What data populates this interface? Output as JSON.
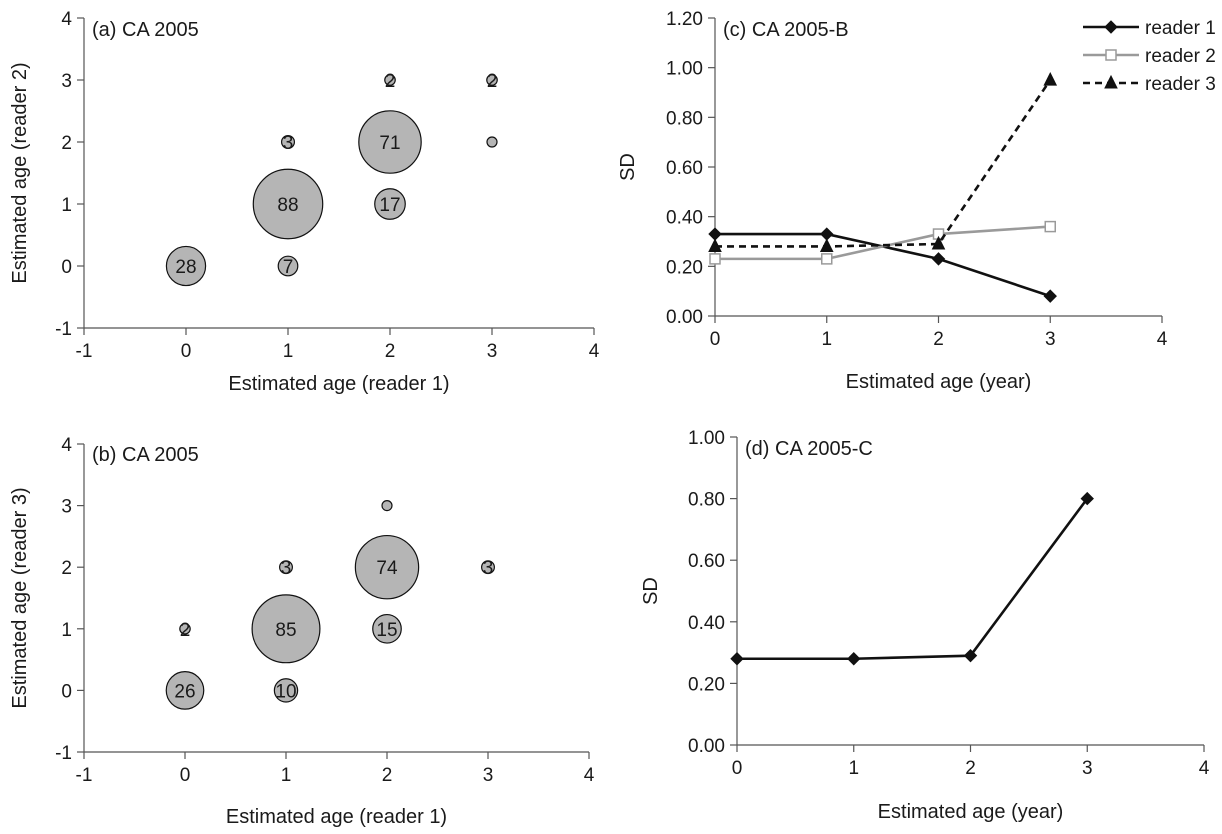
{
  "chart_data": [
    {
      "id": "a",
      "type": "scatter",
      "title": "(a) CA 2005",
      "xlabel": "Estimated age (reader 1)",
      "ylabel": "Estimated age (reader 2)",
      "xlim": [
        -1,
        4
      ],
      "ylim": [
        -1,
        4
      ],
      "xticks": [
        -1,
        0,
        1,
        2,
        3,
        4
      ],
      "yticks": [
        -1,
        0,
        1,
        2,
        3,
        4
      ],
      "points": [
        {
          "x": 0,
          "y": 0,
          "n": 28
        },
        {
          "x": 1,
          "y": 0,
          "n": 7
        },
        {
          "x": 1,
          "y": 1,
          "n": 88
        },
        {
          "x": 1,
          "y": 2,
          "n": 3
        },
        {
          "x": 2,
          "y": 1,
          "n": 17
        },
        {
          "x": 2,
          "y": 2,
          "n": 71
        },
        {
          "x": 2,
          "y": 3,
          "n": 2
        },
        {
          "x": 3,
          "y": 2,
          "n": 1
        },
        {
          "x": 3,
          "y": 3,
          "n": 2
        }
      ]
    },
    {
      "id": "b",
      "type": "scatter",
      "title": "(b) CA 2005",
      "xlabel": "Estimated age (reader 1)",
      "ylabel": "Estimated age (reader 3)",
      "xlim": [
        -1,
        4
      ],
      "ylim": [
        -1,
        4
      ],
      "xticks": [
        -1,
        0,
        1,
        2,
        3,
        4
      ],
      "yticks": [
        -1,
        0,
        1,
        2,
        3,
        4
      ],
      "points": [
        {
          "x": 0,
          "y": 0,
          "n": 26
        },
        {
          "x": 0,
          "y": 1,
          "n": 2
        },
        {
          "x": 1,
          "y": 0,
          "n": 10
        },
        {
          "x": 1,
          "y": 1,
          "n": 85
        },
        {
          "x": 1,
          "y": 2,
          "n": 3
        },
        {
          "x": 2,
          "y": 1,
          "n": 15
        },
        {
          "x": 2,
          "y": 2,
          "n": 74
        },
        {
          "x": 2,
          "y": 3,
          "n": 1
        },
        {
          "x": 3,
          "y": 2,
          "n": 3
        }
      ]
    },
    {
      "id": "c",
      "type": "line",
      "title": "(c) CA 2005-B",
      "xlabel": "Estimated age (year)",
      "ylabel": "SD",
      "xlim": [
        0,
        4
      ],
      "ylim": [
        0,
        1.2
      ],
      "xticks": [
        "0",
        "1",
        "2",
        "3",
        "4"
      ],
      "yticks": [
        "0.00",
        "0.20",
        "0.40",
        "0.60",
        "0.80",
        "1.00",
        "1.20"
      ],
      "x": [
        0,
        1,
        2,
        3
      ],
      "legend": "top-right",
      "series": [
        {
          "name": "reader 1",
          "values": [
            0.33,
            0.33,
            0.23,
            0.08
          ],
          "color": "#111111",
          "dash": "",
          "marker": "diamond"
        },
        {
          "name": "reader 2",
          "values": [
            0.23,
            0.23,
            0.33,
            0.36
          ],
          "color": "#9a9a9a",
          "dash": "",
          "marker": "square-open"
        },
        {
          "name": "reader 3",
          "values": [
            0.28,
            0.28,
            0.29,
            0.95
          ],
          "color": "#111111",
          "dash": "7,5",
          "marker": "triangle"
        }
      ]
    },
    {
      "id": "d",
      "type": "line",
      "title": "(d) CA 2005-C",
      "xlabel": "Estimated age (year)",
      "ylabel": "SD",
      "xlim": [
        0,
        4
      ],
      "ylim": [
        0,
        1.0
      ],
      "xticks": [
        "0",
        "1",
        "2",
        "3",
        "4"
      ],
      "yticks": [
        "0.00",
        "0.20",
        "0.40",
        "0.60",
        "0.80",
        "1.00"
      ],
      "x": [
        0,
        1,
        2,
        3
      ],
      "series": [
        {
          "values": [
            0.28,
            0.28,
            0.29,
            0.8
          ],
          "color": "#111111",
          "dash": "",
          "marker": "diamond"
        }
      ]
    }
  ]
}
